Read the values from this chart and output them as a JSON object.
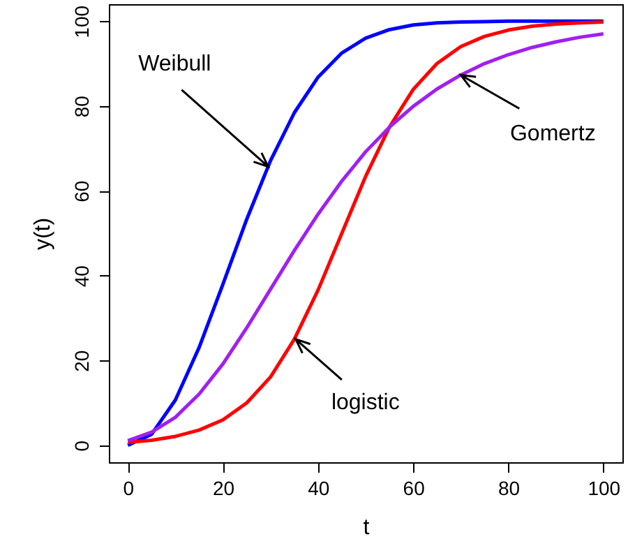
{
  "chart_data": {
    "type": "line",
    "xlabel": "t",
    "ylabel": "y(t)",
    "x": [
      0,
      5,
      10,
      15,
      20,
      25,
      30,
      35,
      40,
      45,
      50,
      55,
      60,
      65,
      70,
      75,
      80,
      85,
      90,
      95,
      100
    ],
    "series": [
      {
        "color": "#0000ff",
        "values": [
          0,
          2.6,
          10.7,
          23.1,
          38.0,
          53.3,
          67.1,
          78.4,
          86.8,
          92.5,
          96.0,
          98.0,
          99.1,
          99.6,
          99.8,
          99.9,
          100,
          100,
          100,
          100,
          100
        ]
      },
      {
        "color": "#ff0000",
        "values": [
          0.7,
          1.2,
          2.1,
          3.6,
          6.0,
          10.0,
          16.1,
          25.0,
          36.6,
          50,
          63.4,
          75,
          83.9,
          90,
          94,
          96.4,
          97.9,
          98.8,
          99.3,
          99.6,
          99.8
        ]
      },
      {
        "color": "#a020f0",
        "values": [
          1.1,
          3.1,
          6.6,
          12.1,
          19.2,
          27.7,
          36.8,
          45.9,
          54.5,
          62.3,
          69.2,
          75.0,
          79.9,
          84.0,
          87.3,
          90.0,
          92.1,
          93.8,
          95.1,
          96.2,
          97.0
        ]
      }
    ],
    "annotations": [
      {
        "text": "Weibull",
        "x": 29.5,
        "y": 65.7
      },
      {
        "text": "Gomertz",
        "x": 70,
        "y": 87.3
      },
      {
        "text": "logistic",
        "x": 35.3,
        "y": 25
      }
    ],
    "xlim": [
      -4,
      104
    ],
    "ylim": [
      -4,
      104
    ],
    "xticks": [
      0,
      20,
      40,
      60,
      80,
      100
    ],
    "yticks": [
      0,
      20,
      40,
      60,
      80,
      100
    ]
  }
}
